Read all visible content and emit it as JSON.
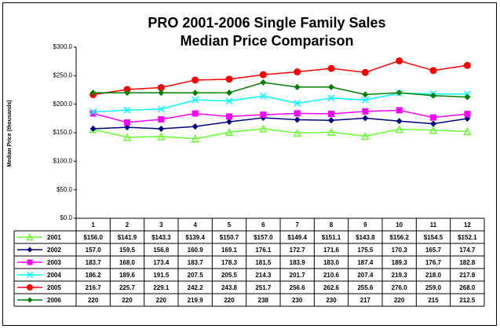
{
  "chart_data": {
    "type": "line",
    "title": [
      "PRO 2001-2006 Single Family Sales",
      "Median Price Comparison"
    ],
    "y_label": "Median Price (thousands)",
    "categories": [
      "1",
      "2",
      "3",
      "4",
      "5",
      "6",
      "7",
      "8",
      "9",
      "10",
      "11",
      "12"
    ],
    "ylim": [
      0,
      300
    ],
    "yticks": [
      {
        "value": 0,
        "label": "$0.0"
      },
      {
        "value": 50,
        "label": "$50.0"
      },
      {
        "value": 100,
        "label": "$100.0"
      },
      {
        "value": 150,
        "label": "$150.0"
      },
      {
        "value": 200,
        "label": "$200.0"
      },
      {
        "value": 250,
        "label": "$250.0"
      },
      {
        "value": 300,
        "label": "$300.0"
      }
    ],
    "series": [
      {
        "name": "2001",
        "color": "#66ff33",
        "marker": "triangle",
        "values": [
          156.0,
          141.9,
          143.3,
          139.4,
          150.7,
          157.0,
          149.4,
          151.1,
          143.8,
          156.2,
          154.5,
          152.1
        ],
        "value_labels": [
          "$156.0",
          "$141.9",
          "$143.3",
          "$139.4",
          "$150.7",
          "$157.0",
          "$149.4",
          "$151.1",
          "$143.8",
          "$156.2",
          "$154.5",
          "$152.1"
        ]
      },
      {
        "name": "2002",
        "color": "#000080",
        "marker": "diamond",
        "values": [
          157.0,
          159.5,
          156.8,
          160.9,
          169.1,
          176.1,
          172.7,
          171.6,
          175.5,
          170.3,
          165.7,
          174.7
        ],
        "value_labels": [
          "157.0",
          "159.5",
          "156.8",
          "160.9",
          "169.1",
          "176.1",
          "172.7",
          "171.6",
          "175.5",
          "170.3",
          "165.7",
          "174.7"
        ]
      },
      {
        "name": "2003",
        "color": "#ff00ff",
        "marker": "square",
        "values": [
          183.7,
          168.0,
          173.4,
          183.7,
          178.3,
          181.5,
          183.9,
          183.0,
          187.4,
          189.3,
          176.7,
          182.8
        ],
        "value_labels": [
          "183.7",
          "168.0",
          "173.4",
          "183.7",
          "178.3",
          "181.5",
          "183.9",
          "183.0",
          "187.4",
          "189.3",
          "176.7",
          "182.8"
        ]
      },
      {
        "name": "2004",
        "color": "#00ffff",
        "marker": "x",
        "values": [
          186.2,
          189.6,
          191.5,
          207.5,
          205.5,
          214.3,
          201.7,
          210.6,
          207.4,
          219.3,
          218.0,
          217.8
        ],
        "value_labels": [
          "186.2",
          "189.6",
          "191.5",
          "207.5",
          "205.5",
          "214.3",
          "201.7",
          "210.6",
          "207.4",
          "219.3",
          "218.0",
          "217.8"
        ]
      },
      {
        "name": "2005",
        "color": "#ff0000",
        "marker": "circle",
        "values": [
          216.7,
          225.7,
          229.1,
          242.2,
          243.8,
          251.7,
          256.6,
          262.6,
          255.6,
          276.0,
          259.0,
          268.0
        ],
        "value_labels": [
          "216.7",
          "225.7",
          "229.1",
          "242.2",
          "243.8",
          "251.7",
          "256.6",
          "262.6",
          "255.6",
          "276.0",
          "259.0",
          "268.0"
        ]
      },
      {
        "name": "2006",
        "color": "#008000",
        "marker": "diamond",
        "values": [
          220,
          220,
          220,
          219.9,
          220,
          238,
          230,
          230,
          217,
          220,
          215,
          212.5
        ]
      }
    ]
  }
}
